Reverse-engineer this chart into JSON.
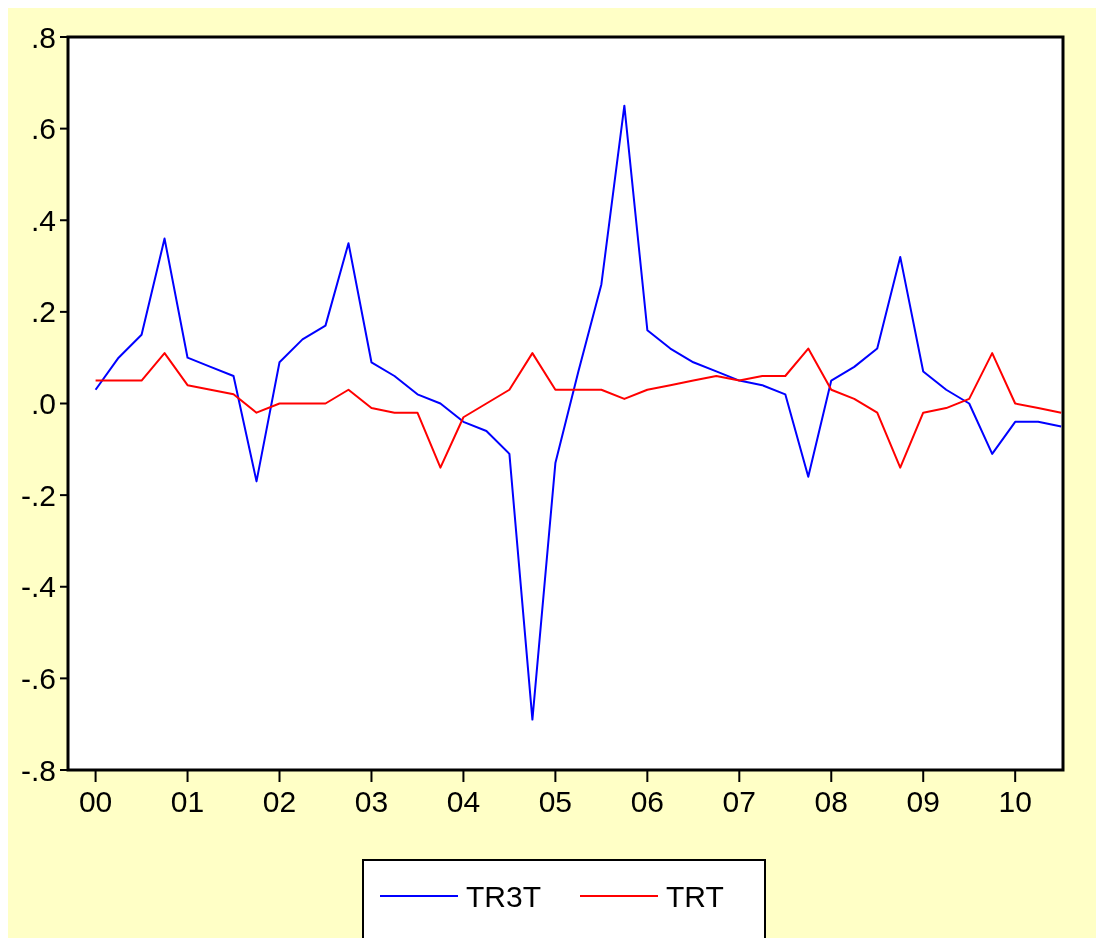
{
  "chart_data": {
    "type": "line",
    "x": [
      2000,
      2000.25,
      2000.5,
      2000.75,
      2001,
      2001.25,
      2001.5,
      2001.75,
      2002,
      2002.25,
      2002.5,
      2002.75,
      2003,
      2003.25,
      2003.5,
      2003.75,
      2004,
      2004.25,
      2004.5,
      2004.75,
      2005,
      2005.25,
      2005.5,
      2005.75,
      2006,
      2006.25,
      2006.5,
      2006.75,
      2007,
      2007.25,
      2007.5,
      2007.75,
      2008,
      2008.25,
      2008.5,
      2008.75,
      2009,
      2009.25,
      2009.5,
      2009.75,
      2010,
      2010.25,
      2010.5
    ],
    "series": [
      {
        "name": "TR3T",
        "color": "#0000ff",
        "values": [
          0.03,
          0.1,
          0.15,
          0.36,
          0.1,
          0.08,
          0.06,
          -0.17,
          0.09,
          0.14,
          0.17,
          0.35,
          0.09,
          0.06,
          0.02,
          0.0,
          -0.04,
          -0.06,
          -0.11,
          -0.69,
          -0.13,
          0.07,
          0.26,
          0.65,
          0.16,
          0.12,
          0.09,
          0.07,
          0.05,
          0.04,
          0.02,
          -0.16,
          0.05,
          0.08,
          0.12,
          0.32,
          0.07,
          0.03,
          0.0,
          -0.11,
          -0.04,
          -0.04,
          -0.05
        ]
      },
      {
        "name": "TRT",
        "color": "#ff0000",
        "values": [
          0.05,
          0.05,
          0.05,
          0.11,
          0.04,
          0.03,
          0.02,
          -0.02,
          0.0,
          0.0,
          0.0,
          0.03,
          -0.01,
          -0.02,
          -0.02,
          -0.14,
          -0.03,
          0.0,
          0.03,
          0.11,
          0.03,
          0.03,
          0.03,
          0.01,
          0.03,
          0.04,
          0.05,
          0.06,
          0.05,
          0.06,
          0.06,
          0.12,
          0.03,
          0.01,
          -0.02,
          -0.14,
          -0.02,
          -0.01,
          0.01,
          0.11,
          0.0,
          -0.01,
          -0.02
        ]
      }
    ],
    "xlim": [
      1999.7,
      2010.52
    ],
    "xticks": [
      {
        "value": 2000,
        "label": "00"
      },
      {
        "value": 2001,
        "label": "01"
      },
      {
        "value": 2002,
        "label": "02"
      },
      {
        "value": 2003,
        "label": "03"
      },
      {
        "value": 2004,
        "label": "04"
      },
      {
        "value": 2005,
        "label": "05"
      },
      {
        "value": 2006,
        "label": "06"
      },
      {
        "value": 2007,
        "label": "07"
      },
      {
        "value": 2008,
        "label": "08"
      },
      {
        "value": 2009,
        "label": "09"
      },
      {
        "value": 2010,
        "label": "10"
      }
    ],
    "ylim": [
      -0.8,
      0.8
    ],
    "yticks": [
      {
        "value": -0.8,
        "label": "-.8"
      },
      {
        "value": -0.6,
        "label": "-.6"
      },
      {
        "value": -0.4,
        "label": "-.4"
      },
      {
        "value": -0.2,
        "label": "-.2"
      },
      {
        "value": 0,
        "label": ".0"
      },
      {
        "value": 0.2,
        "label": ".2"
      },
      {
        "value": 0.4,
        "label": ".4"
      },
      {
        "value": 0.6,
        "label": ".6"
      },
      {
        "value": 0.8,
        "label": ".8"
      }
    ],
    "grid": false,
    "legend": "bottom",
    "line_style": "solid",
    "marker": "none"
  }
}
